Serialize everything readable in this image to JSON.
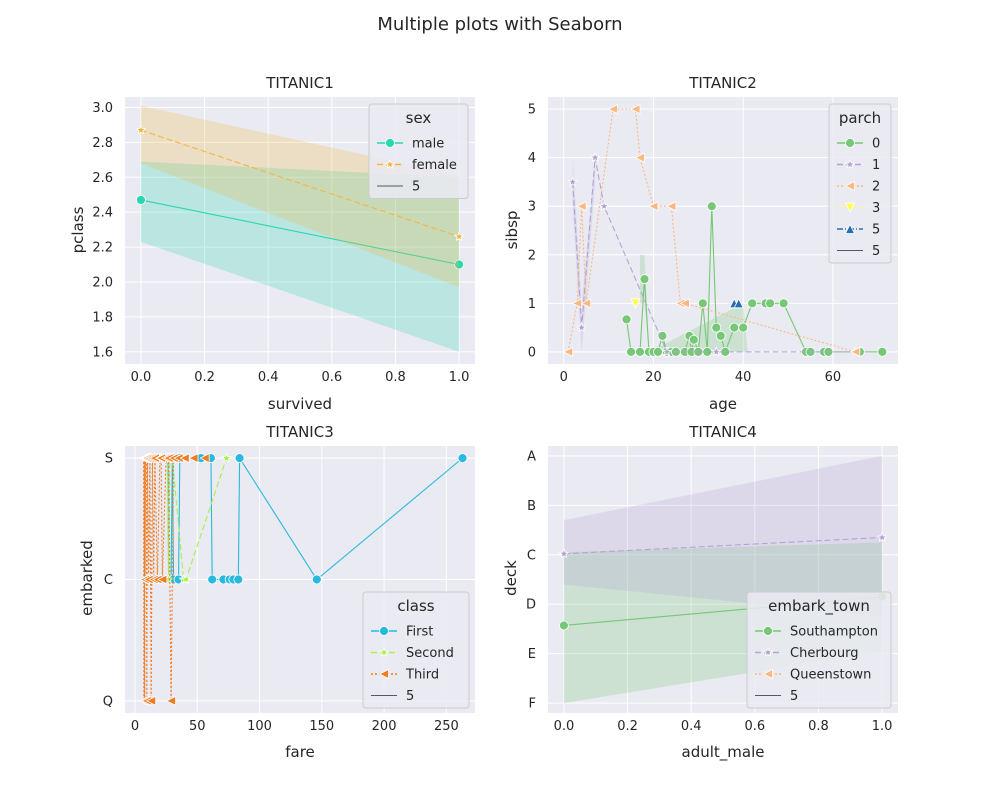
{
  "figure": {
    "suptitle": "Multiple plots with Seaborn"
  },
  "chart_data": [
    {
      "type": "line",
      "title": "TITANIC1",
      "xlabel": "survived",
      "ylabel": "pclass",
      "xlim": [
        -0.05,
        1.05
      ],
      "ylim": [
        1.53,
        3.06
      ],
      "xticks": [
        0,
        0.2,
        0.4,
        0.6,
        0.8,
        1
      ],
      "xtick_labels": [
        "0.0",
        "0.2",
        "0.4",
        "0.6",
        "0.8",
        "1.0"
      ],
      "yticks": [
        1.6,
        1.8,
        2.0,
        2.2,
        2.4,
        2.6,
        2.8,
        3.0
      ],
      "ytick_labels": [
        "1.6",
        "1.8",
        "2.0",
        "2.2",
        "2.4",
        "2.6",
        "2.8",
        "3.0"
      ],
      "grid": true,
      "legend": {
        "title": "sex",
        "placement": "top-right",
        "extra": "5"
      },
      "series": [
        {
          "name": "male",
          "color": "#2ad8b0",
          "marker": "circle",
          "dash": "",
          "points": [
            [
              0,
              2.47
            ],
            [
              1,
              2.1
            ]
          ],
          "band": [
            [
              0,
              2.23,
              2.69
            ],
            [
              1,
              1.6,
              2.6
            ]
          ]
        },
        {
          "name": "female",
          "color": "#f5b63f",
          "marker": "star",
          "dash": "6,3",
          "points": [
            [
              0,
              2.87
            ],
            [
              1,
              2.26
            ]
          ],
          "band": [
            [
              0,
              2.68,
              3.01
            ],
            [
              1,
              1.97,
              2.61
            ]
          ]
        }
      ]
    },
    {
      "type": "line",
      "title": "TITANIC2",
      "xlabel": "age",
      "ylabel": "sibsp",
      "xlim": [
        -3.5,
        74.5
      ],
      "ylim": [
        -0.25,
        5.25
      ],
      "xticks": [
        0,
        20,
        40,
        60
      ],
      "xtick_labels": [
        "0",
        "20",
        "40",
        "60"
      ],
      "yticks": [
        0,
        1,
        2,
        3,
        4,
        5
      ],
      "ytick_labels": [
        "0",
        "1",
        "2",
        "3",
        "4",
        "5"
      ],
      "grid": true,
      "legend": {
        "title": "parch",
        "placement": "top-right",
        "extra": "5"
      },
      "series": [
        {
          "name": "0",
          "color": "#76c776",
          "marker": "circle",
          "dash": "",
          "points": [
            [
              14,
              0.67
            ],
            [
              15,
              0
            ],
            [
              17,
              0
            ],
            [
              18,
              1.5
            ],
            [
              19,
              0
            ],
            [
              20,
              0
            ],
            [
              21,
              0
            ],
            [
              22,
              0.33
            ],
            [
              23,
              0
            ],
            [
              24,
              0
            ],
            [
              25,
              0
            ],
            [
              27,
              0
            ],
            [
              28,
              0.33
            ],
            [
              28.5,
              0
            ],
            [
              29,
              0.25
            ],
            [
              30,
              0
            ],
            [
              31,
              1
            ],
            [
              32,
              0
            ],
            [
              33,
              3
            ],
            [
              34,
              0.5
            ],
            [
              35,
              0.33
            ],
            [
              36,
              0
            ],
            [
              38,
              0.5
            ],
            [
              40,
              0.5
            ],
            [
              42,
              1
            ],
            [
              45,
              1
            ],
            [
              46,
              1
            ],
            [
              49,
              1
            ],
            [
              54,
              0
            ],
            [
              55,
              0
            ],
            [
              58,
              0
            ],
            [
              59,
              0
            ],
            [
              66,
              0
            ],
            [
              71,
              0
            ]
          ],
          "band": [
            [
              17,
              1.0,
              2.0
            ],
            [
              18,
              1.0,
              2.0
            ],
            [
              19,
              0,
              0
            ],
            [
              40,
              0,
              1
            ],
            [
              41,
              0,
              0
            ]
          ]
        },
        {
          "name": "1",
          "color": "#b3a4d4",
          "marker": "star",
          "dash": "6,3",
          "points": [
            [
              2,
              3.5
            ],
            [
              4,
              0.5
            ],
            [
              7,
              4
            ],
            [
              9,
              3
            ],
            [
              23,
              0
            ],
            [
              34,
              0
            ],
            [
              65,
              0
            ]
          ],
          "band": [
            [
              2,
              3.0,
              4.0
            ],
            [
              4,
              0,
              1.0
            ],
            [
              7,
              3.5,
              4.0
            ]
          ]
        },
        {
          "name": "2",
          "color": "#fbb882",
          "marker": "tri-left",
          "dash": "2,2",
          "points": [
            [
              1,
              0
            ],
            [
              3,
              1
            ],
            [
              4,
              3
            ],
            [
              5,
              1
            ],
            [
              11,
              5
            ],
            [
              16,
              5
            ],
            [
              17,
              4
            ],
            [
              20,
              3
            ],
            [
              24,
              3
            ],
            [
              26,
              1
            ],
            [
              27,
              1
            ],
            [
              65,
              0
            ]
          ],
          "band": []
        },
        {
          "name": "3",
          "color": "#ffff50",
          "marker": "tri-down",
          "dash": "1,2",
          "points": [
            [
              16,
              1
            ]
          ],
          "band": []
        },
        {
          "name": "5",
          "color": "#2d6db2",
          "marker": "tri-up",
          "dash": "6,2,1,2",
          "points": [
            [
              38,
              1
            ],
            [
              39,
              1
            ]
          ],
          "band": []
        }
      ]
    },
    {
      "type": "line",
      "title": "TITANIC3",
      "xlabel": "fare",
      "ylabel": "embarked",
      "xlim": [
        -8,
        273
      ],
      "ylim": [
        2.1,
        -0.1
      ],
      "categorical_y": [
        "S",
        "C",
        "Q"
      ],
      "xticks": [
        0,
        50,
        100,
        150,
        200,
        250
      ],
      "xtick_labels": [
        "0",
        "50",
        "100",
        "150",
        "200",
        "250"
      ],
      "yticks": [
        0,
        1,
        2
      ],
      "ytick_labels": [
        "S",
        "C",
        "Q"
      ],
      "grid": true,
      "legend": {
        "title": "class",
        "placement": "bottom-right",
        "extra": "5"
      },
      "series": [
        {
          "name": "First",
          "color": "#29b9de",
          "marker": "circle",
          "dash": "",
          "points": [
            [
              26.5,
              0
            ],
            [
              27,
              1
            ],
            [
              29,
              1
            ],
            [
              30,
              0
            ],
            [
              31,
              1
            ],
            [
              35,
              1
            ],
            [
              36,
              0
            ],
            [
              52,
              0
            ],
            [
              53,
              0
            ],
            [
              61,
              0
            ],
            [
              62,
              1
            ],
            [
              71,
              1
            ],
            [
              76,
              1
            ],
            [
              79,
              1
            ],
            [
              83,
              1
            ],
            [
              84,
              0
            ],
            [
              146,
              1
            ],
            [
              263,
              0
            ]
          ],
          "band": []
        },
        {
          "name": "Second",
          "color": "#a9f048",
          "marker": "star",
          "dash": "6,3",
          "points": [
            [
              10.5,
              0
            ],
            [
              13,
              0
            ],
            [
              21,
              0
            ],
            [
              26,
              0
            ],
            [
              27,
              1
            ],
            [
              28,
              0
            ],
            [
              30,
              0
            ],
            [
              39,
              1
            ],
            [
              41,
              1
            ],
            [
              73.5,
              0
            ]
          ],
          "band": []
        },
        {
          "name": "Third",
          "color": "#f07c22",
          "marker": "tri-left",
          "dash": "2,2",
          "points": [
            [
              7,
              0
            ],
            [
              7.2,
              2
            ],
            [
              7.3,
              1
            ],
            [
              7.5,
              0
            ],
            [
              7.8,
              2
            ],
            [
              8,
              0
            ],
            [
              8.1,
              1
            ],
            [
              8.5,
              0
            ],
            [
              9,
              0
            ],
            [
              9.5,
              2
            ],
            [
              10,
              0
            ],
            [
              11,
              1
            ],
            [
              12,
              0
            ],
            [
              13,
              2
            ],
            [
              14,
              0
            ],
            [
              15,
              1
            ],
            [
              16,
              0
            ],
            [
              18,
              1
            ],
            [
              20,
              0
            ],
            [
              21,
              0
            ],
            [
              22,
              1
            ],
            [
              25,
              0
            ],
            [
              27,
              0
            ],
            [
              29,
              2
            ],
            [
              31,
              0
            ],
            [
              35,
              0
            ],
            [
              40,
              0
            ],
            [
              47,
              0
            ],
            [
              56,
              0
            ]
          ],
          "band": []
        }
      ]
    },
    {
      "type": "line",
      "title": "TITANIC4",
      "xlabel": "adult_male",
      "ylabel": "deck",
      "xlim": [
        -0.05,
        1.05
      ],
      "ylim": [
        5.2,
        -0.2
      ],
      "categorical_y": [
        "A",
        "B",
        "C",
        "D",
        "E",
        "F"
      ],
      "xticks": [
        0,
        0.2,
        0.4,
        0.6,
        0.8,
        1
      ],
      "xtick_labels": [
        "0.0",
        "0.2",
        "0.4",
        "0.6",
        "0.8",
        "1.0"
      ],
      "yticks": [
        0,
        1,
        2,
        3,
        4,
        5
      ],
      "ytick_labels": [
        "A",
        "B",
        "C",
        "D",
        "E",
        "F"
      ],
      "grid": true,
      "legend": {
        "title": "embark_town",
        "placement": "bottom-right",
        "extra": "5"
      },
      "series": [
        {
          "name": "Southampton",
          "color": "#76c776",
          "marker": "circle",
          "dash": "",
          "points": [
            [
              0,
              3.43
            ],
            [
              1,
              2.85
            ]
          ],
          "band": [
            [
              0,
              1.95,
              5.0
            ],
            [
              1,
              1.75,
              3.95
            ]
          ]
        },
        {
          "name": "Cherbourg",
          "color": "#b3a4d4",
          "marker": "star",
          "dash": "6,3",
          "points": [
            [
              0,
              1.98
            ],
            [
              1,
              1.65
            ]
          ],
          "band": [
            [
              0,
              1.3,
              2.6
            ],
            [
              1,
              0.0,
              3.25
            ]
          ]
        },
        {
          "name": "Queenstown",
          "color": "#fbb882",
          "marker": "tri-left",
          "dash": "2,2",
          "points": [],
          "band": []
        }
      ]
    }
  ]
}
